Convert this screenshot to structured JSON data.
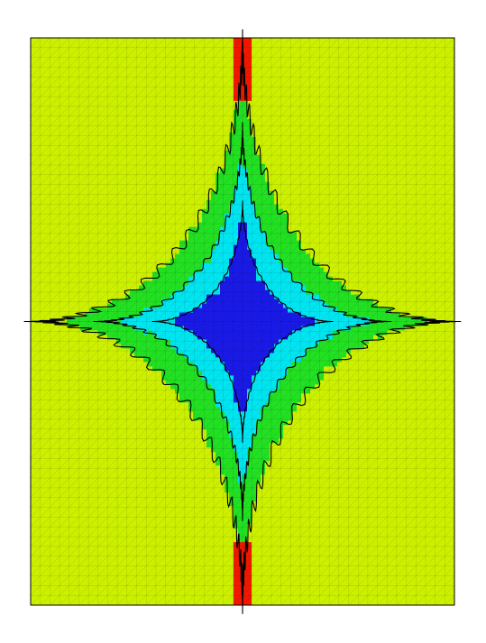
{
  "chart_data": {
    "type": "heatmap",
    "title": "",
    "xlabel": "",
    "ylabel": "",
    "xlim": [
      -1,
      1
    ],
    "ylim": [
      -1,
      1
    ],
    "grid": "triangular mesh",
    "legend": "none",
    "levels": [
      {
        "value": 1,
        "color": "#1a1ae6"
      },
      {
        "value": 2,
        "color": "#00e5f0"
      },
      {
        "value": 3,
        "color": "#22e022"
      },
      {
        "value": 4,
        "color": "#ccf000"
      },
      {
        "value": 5,
        "color": "#f01800"
      }
    ],
    "contour_radii": [
      0.42,
      0.68,
      0.98
    ],
    "star_exponent": 0.55,
    "center_band_halfwidth": 0.05
  }
}
